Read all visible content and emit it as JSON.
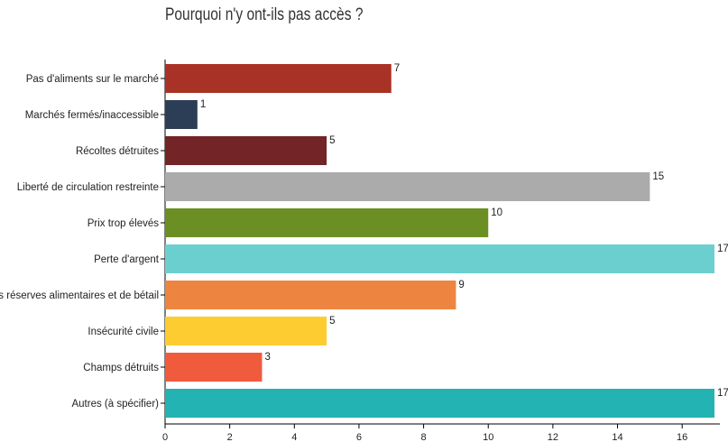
{
  "chart_data": {
    "type": "bar",
    "orientation": "horizontal",
    "title": "Pourquoi n'y ont-ils pas accès ?",
    "categories": [
      "Pas d'aliments sur le marché",
      "Marchés fermés/inaccessible",
      "Récoltes détruites",
      "Liberté de circulation restreinte",
      "Prix trop élevés",
      "Perte d'argent",
      "Perte des réserves alimentaires et de bétail",
      "Insécurité civile",
      "Champs détruits",
      "Autres (à spécifier)"
    ],
    "values": [
      7,
      1,
      5,
      15,
      10,
      17,
      9,
      5,
      3,
      17
    ],
    "colors": [
      "#a93226",
      "#2c3e56",
      "#722426",
      "#ababab",
      "#6b8f23",
      "#6ccfcf",
      "#ed8540",
      "#fdcc31",
      "#f05a3d",
      "#24b3b3"
    ],
    "xlim": [
      0,
      17
    ],
    "xticks": [
      0,
      2,
      4,
      6,
      8,
      10,
      12,
      14,
      16
    ],
    "grid": false,
    "xlabel": "",
    "ylabel": ""
  }
}
